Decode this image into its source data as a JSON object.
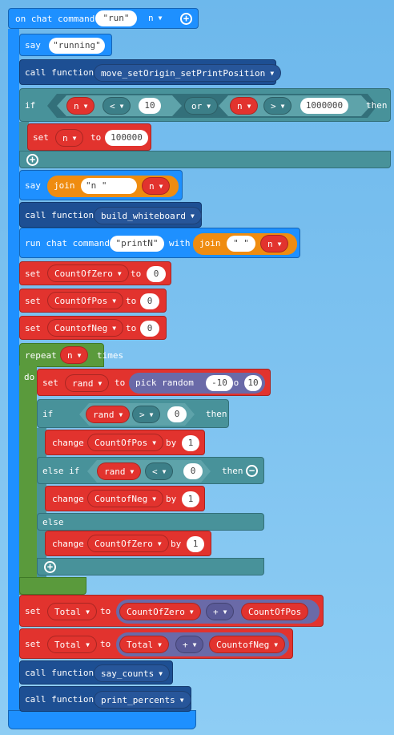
{
  "event": {
    "label": "on chat command",
    "command": "\"run\"",
    "param": "n"
  },
  "say1": {
    "label": "say",
    "text": "\"running\""
  },
  "call1": {
    "label": "call function",
    "fn": "move_setOrigin_setPrintPosition"
  },
  "if1": {
    "label": "if",
    "var1": "n",
    "op1": "<",
    "val1": "10",
    "logic": "or",
    "var2": "n",
    "op2": ">",
    "val2": "1000000",
    "then": "then",
    "set": {
      "label": "set",
      "var": "n",
      "to": "to",
      "value": "100000"
    }
  },
  "say2": {
    "label": "say",
    "join": "join",
    "text": "\"n        \"",
    "var": "n"
  },
  "call2": {
    "label": "call function",
    "fn": "build_whiteboard"
  },
  "runcmd": {
    "label": "run chat command",
    "cmd": "\"printN\"",
    "with": "with",
    "join": "join",
    "text": "\" \"",
    "var": "n"
  },
  "set_zero": {
    "label": "set",
    "var": "CountOfZero",
    "to": "to",
    "value": "0"
  },
  "set_pos": {
    "label": "set",
    "var": "CountOfPos",
    "to": "to",
    "value": "0"
  },
  "set_neg": {
    "label": "set",
    "var": "CountofNeg",
    "to": "to",
    "value": "0"
  },
  "repeat": {
    "label": "repeat",
    "var": "n",
    "times": "times",
    "do": "do",
    "set_rand": {
      "label": "set",
      "var": "rand",
      "to": "to",
      "pick": "pick random",
      "min": "-10",
      "to2": "to",
      "max": "10"
    },
    "if2": {
      "label": "if",
      "var": "rand",
      "op": ">",
      "val": "0",
      "then": "then",
      "change": {
        "label": "change",
        "var": "CountOfPos",
        "by": "by",
        "value": "1"
      },
      "elseif": {
        "label": "else if",
        "var": "rand",
        "op": "<",
        "val": "0",
        "then": "then"
      },
      "change2": {
        "label": "change",
        "var": "CountofNeg",
        "by": "by",
        "value": "1"
      },
      "else": "else",
      "change3": {
        "label": "change",
        "var": "CountOfZero",
        "by": "by",
        "value": "1"
      }
    }
  },
  "set_total1": {
    "label": "set",
    "var": "Total",
    "to": "to",
    "a": "CountOfZero",
    "op": "+",
    "b": "CountOfPos"
  },
  "set_total2": {
    "label": "set",
    "var": "Total",
    "to": "to",
    "a": "Total",
    "op": "+",
    "b": "CountofNeg"
  },
  "call3": {
    "label": "call function",
    "fn": "say_counts"
  },
  "call4": {
    "label": "call function",
    "fn": "print_percents"
  },
  "icons": {
    "add": "+",
    "remove": "−",
    "caret": "▼"
  }
}
